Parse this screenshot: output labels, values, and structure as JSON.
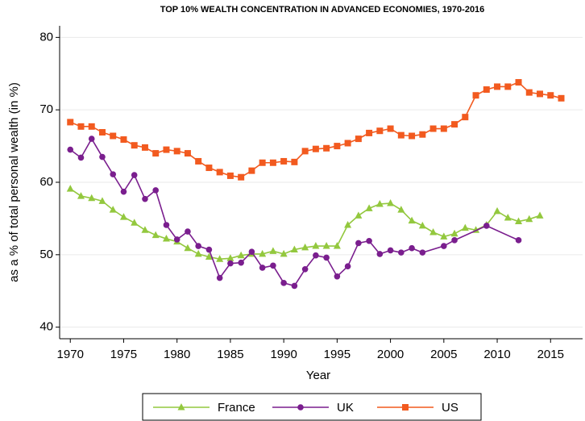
{
  "chart_data": {
    "type": "line",
    "title": "TOP 10% WEALTH CONCENTRATION IN ADVANCED ECONOMIES, 1970-2016",
    "x_label": "Year",
    "y_label": "as a % of total personal wealth (in %)",
    "xlim": [
      1969,
      2018
    ],
    "xticks": [
      1970,
      1975,
      1980,
      1985,
      1990,
      1995,
      2000,
      2005,
      2010,
      2015
    ],
    "ylim": [
      38.4,
      81.6
    ],
    "yticks": [
      40,
      50,
      60,
      70,
      80
    ],
    "grid": true,
    "legend": "bottom",
    "series": [
      {
        "name": "France",
        "color": "#93c83e",
        "marker": "triangle",
        "x": [
          1970,
          1971,
          1972,
          1973,
          1974,
          1975,
          1976,
          1977,
          1978,
          1979,
          1980,
          1981,
          1982,
          1983,
          1984,
          1985,
          1986,
          1987,
          1988,
          1989,
          1990,
          1991,
          1992,
          1993,
          1994,
          1995,
          1996,
          1997,
          1998,
          1999,
          2000,
          2001,
          2002,
          2003,
          2004,
          2005,
          2006,
          2007,
          2008,
          2009,
          2010,
          2011,
          2012,
          2013,
          2014
        ],
        "values": [
          59.1,
          58.1,
          57.8,
          57.4,
          56.2,
          55.2,
          54.4,
          53.4,
          52.7,
          52.2,
          51.8,
          50.9,
          50.1,
          49.7,
          49.4,
          49.5,
          49.9,
          50.1,
          50.1,
          50.5,
          50.1,
          50.7,
          51.0,
          51.2,
          51.2,
          51.2,
          54.1,
          55.4,
          56.4,
          57.0,
          57.1,
          56.2,
          54.7,
          54.0,
          53.1,
          52.5,
          52.9,
          53.7,
          53.4,
          54.1,
          56.0,
          55.1,
          54.6,
          54.9,
          55.4
        ]
      },
      {
        "name": "UK",
        "color": "#7a1e8e",
        "marker": "circle",
        "x": [
          1970,
          1971,
          1972,
          1973,
          1974,
          1975,
          1976,
          1977,
          1978,
          1979,
          1980,
          1981,
          1982,
          1983,
          1984,
          1985,
          1986,
          1987,
          1988,
          1989,
          1990,
          1991,
          1992,
          1993,
          1994,
          1995,
          1996,
          1997,
          1998,
          1999,
          2000,
          2001,
          2002,
          2003,
          2005,
          2006,
          2009,
          2012
        ],
        "values": [
          64.5,
          63.4,
          66.0,
          63.5,
          61.1,
          58.7,
          61.0,
          57.7,
          58.9,
          54.1,
          52.1,
          53.2,
          51.2,
          50.7,
          46.8,
          48.8,
          48.9,
          50.4,
          48.2,
          48.5,
          46.1,
          45.7,
          48.0,
          49.9,
          49.6,
          47.0,
          48.4,
          51.6,
          51.9,
          50.1,
          50.6,
          50.3,
          50.9,
          50.3,
          51.2,
          52.0,
          54.0,
          52.0
        ]
      },
      {
        "name": "US",
        "color": "#f25a1f",
        "marker": "square",
        "x": [
          1970,
          1971,
          1972,
          1973,
          1974,
          1975,
          1976,
          1977,
          1978,
          1979,
          1980,
          1981,
          1982,
          1983,
          1984,
          1985,
          1986,
          1987,
          1988,
          1989,
          1990,
          1991,
          1992,
          1993,
          1994,
          1995,
          1996,
          1997,
          1998,
          1999,
          2000,
          2001,
          2002,
          2003,
          2004,
          2005,
          2006,
          2007,
          2008,
          2009,
          2010,
          2011,
          2012,
          2013,
          2014,
          2015,
          2016
        ],
        "values": [
          68.3,
          67.7,
          67.7,
          66.9,
          66.4,
          65.9,
          65.1,
          64.8,
          64.0,
          64.5,
          64.3,
          64.0,
          62.9,
          62.0,
          61.4,
          60.9,
          60.7,
          61.6,
          62.7,
          62.7,
          62.9,
          62.8,
          64.3,
          64.6,
          64.7,
          65.0,
          65.4,
          66.0,
          66.8,
          67.1,
          67.4,
          66.5,
          66.4,
          66.6,
          67.4,
          67.4,
          68.0,
          69.0,
          72.0,
          72.8,
          73.2,
          73.2,
          73.8,
          72.4,
          72.2,
          72.0,
          71.6
        ]
      }
    ]
  }
}
